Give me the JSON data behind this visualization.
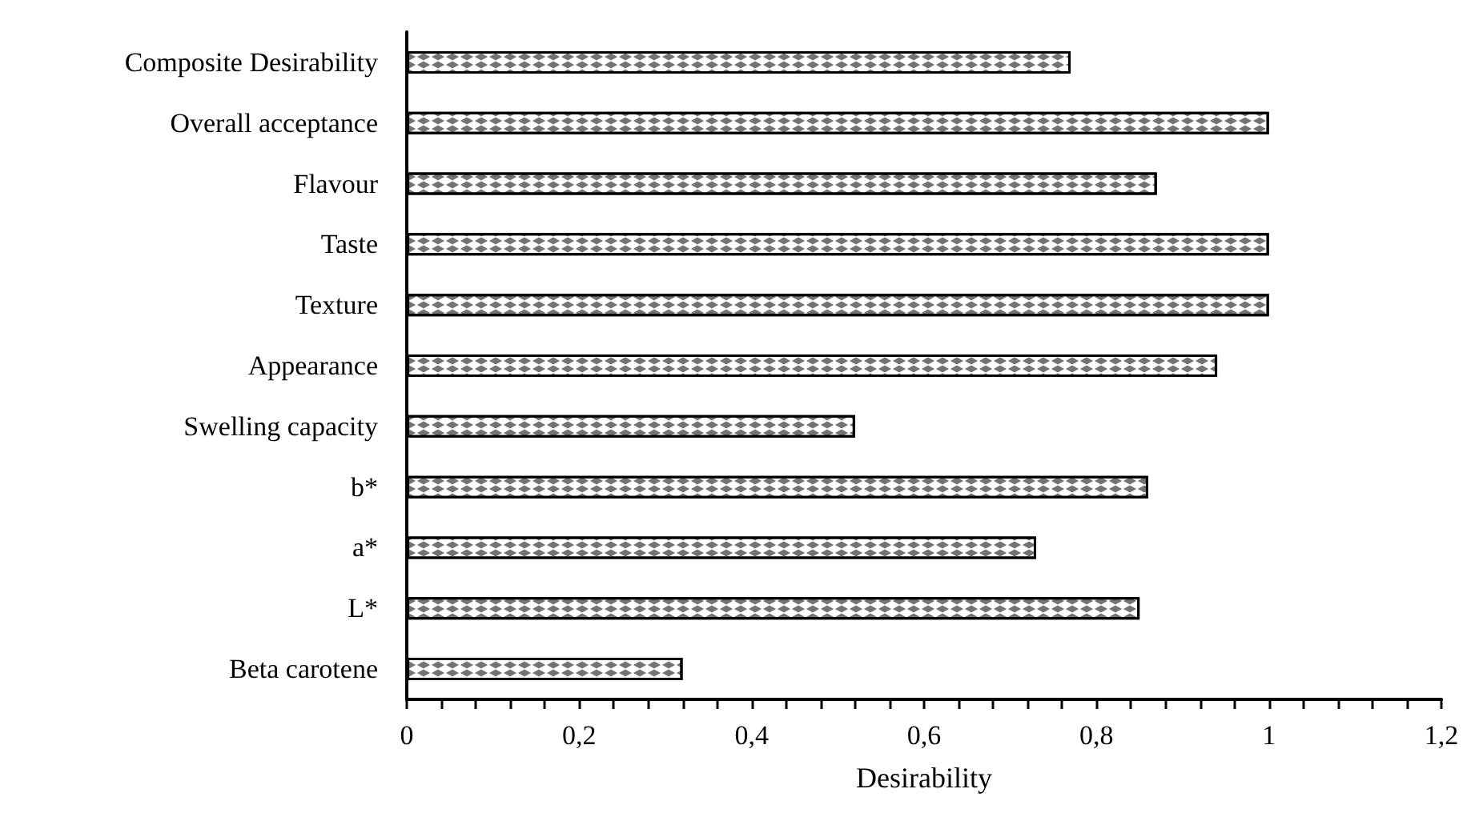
{
  "chart_data": {
    "type": "bar",
    "orientation": "horizontal",
    "xlabel": "Desirability",
    "categories": [
      "Composite Desirability",
      "Overall acceptance",
      "Flavour",
      "Taste",
      "Texture",
      "Appearance",
      "Swelling capacity",
      "b*",
      "a*",
      "L*",
      "Beta carotene"
    ],
    "values": [
      0.77,
      1,
      0.87,
      1,
      1,
      0.94,
      0.52,
      0.86,
      0.73,
      0.85,
      0.32
    ],
    "color": "#ffffff",
    "xlim": [
      0,
      1.2
    ],
    "xticks": [
      {
        "value": 0,
        "label": "0"
      },
      {
        "value": 0.04,
        "label": null
      },
      {
        "value": 0.08,
        "label": null
      },
      {
        "value": 0.12,
        "label": null
      },
      {
        "value": 0.16,
        "label": null
      },
      {
        "value": 0.2,
        "label": "0,2"
      },
      {
        "value": 0.24,
        "label": null
      },
      {
        "value": 0.28,
        "label": null
      },
      {
        "value": 0.32,
        "label": null
      },
      {
        "value": 0.36,
        "label": null
      },
      {
        "value": 0.4,
        "label": "0,4"
      },
      {
        "value": 0.44,
        "label": null
      },
      {
        "value": 0.48,
        "label": null
      },
      {
        "value": 0.52,
        "label": null
      },
      {
        "value": 0.56,
        "label": null
      },
      {
        "value": 0.6,
        "label": "0,6"
      },
      {
        "value": 0.64,
        "label": null
      },
      {
        "value": 0.68,
        "label": null
      },
      {
        "value": 0.72,
        "label": null
      },
      {
        "value": 0.76,
        "label": null
      },
      {
        "value": 0.8,
        "label": "0,8"
      },
      {
        "value": 0.84,
        "label": null
      },
      {
        "value": 0.88,
        "label": null
      },
      {
        "value": 0.92,
        "label": null
      },
      {
        "value": 0.96,
        "label": null
      },
      {
        "value": 1,
        "label": "1"
      },
      {
        "value": 1.04,
        "label": null
      },
      {
        "value": 1.08,
        "label": null
      },
      {
        "value": 1.12,
        "label": null
      },
      {
        "value": 1.16,
        "label": null
      },
      {
        "value": 1.2,
        "label": "1,2"
      }
    ],
    "grid": false
  }
}
